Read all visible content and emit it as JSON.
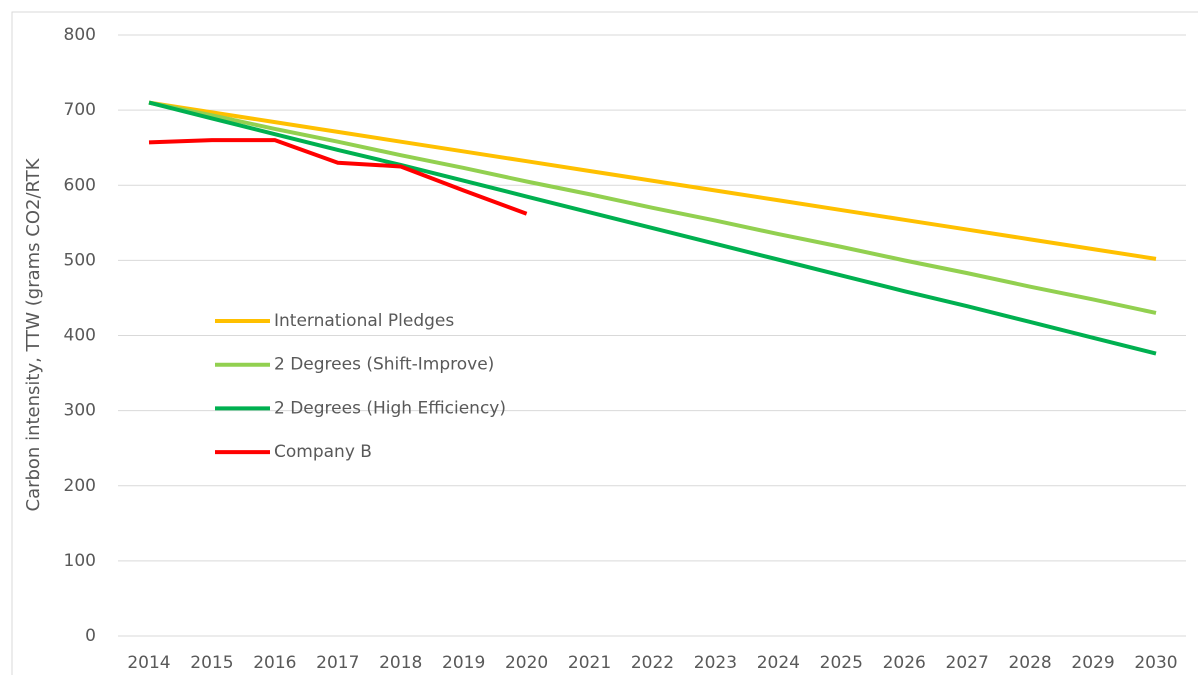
{
  "chart_data": {
    "type": "line",
    "y_label": "Carbon intensity, TTW (grams CO2/RTK",
    "categories": [
      "2014",
      "2015",
      "2016",
      "2017",
      "2018",
      "2019",
      "2020",
      "2021",
      "2022",
      "2023",
      "2024",
      "2025",
      "2026",
      "2027",
      "2028",
      "2029",
      "2030"
    ],
    "series": [
      {
        "name": "International Pledges",
        "color": "#ffc000",
        "values": [
          710,
          697,
          684,
          671,
          658,
          645,
          632,
          619,
          606,
          593,
          580,
          567,
          554,
          541,
          528,
          515,
          502
        ]
      },
      {
        "name": "2 Degrees (Shift-Improve)",
        "color": "#92d050",
        "values": [
          710,
          693,
          675,
          658,
          640,
          623,
          605,
          588,
          570,
          553,
          535,
          518,
          500,
          483,
          465,
          448,
          430
        ]
      },
      {
        "name": "2 Degrees (High Efficiency)",
        "color": "#00b050",
        "values": [
          710,
          689,
          668,
          647,
          627,
          606,
          585,
          564,
          543,
          522,
          501,
          480,
          459,
          439,
          418,
          397,
          376
        ]
      },
      {
        "name": "Company B",
        "color": "#ff0000",
        "values": [
          657,
          660,
          660,
          630,
          625,
          593,
          562,
          null,
          null,
          null,
          null,
          null,
          null,
          null,
          null,
          null,
          null
        ]
      }
    ],
    "ylim": [
      0,
      800
    ],
    "yticks": [
      0,
      100,
      200,
      300,
      400,
      500,
      600,
      700,
      800
    ],
    "grid": true,
    "legend": "left"
  }
}
